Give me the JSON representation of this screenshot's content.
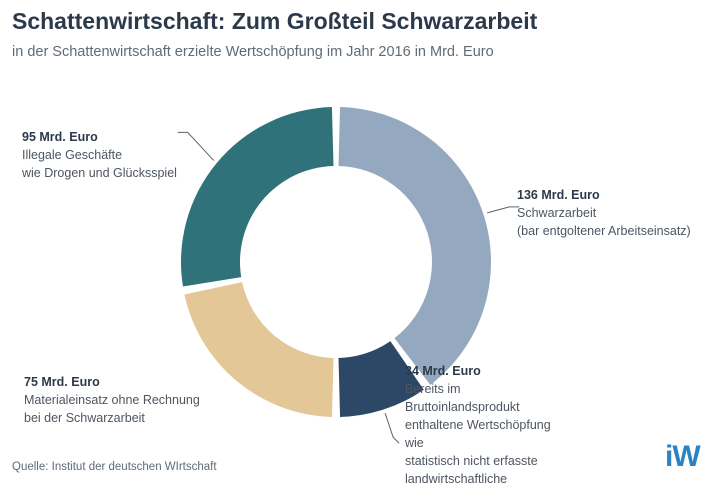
{
  "header": {
    "title": "Schattenwirtschaft: Zum Großteil Schwarzarbeit",
    "subtitle": "in der Schattenwirtschaft erzielte Wertschöpfung im Jahr 2016 in Mrd. Euro"
  },
  "chart_data": {
    "type": "pie",
    "variant": "donut",
    "unit": "Mrd. Euro",
    "slices": [
      {
        "value": 136,
        "value_label": "136 Mrd. Euro",
        "label": "Schwarzarbeit\n(bar entgoltener Arbeitseinsatz)",
        "color": "#94a9bf"
      },
      {
        "value": 34,
        "value_label": "34 Mrd. Euro",
        "label": "Bereits im\nBruttoinlandsprodukt\nenthaltene Wertschöpfung\nwie\nstatistisch nicht erfasste\nlandwirtschaftliche",
        "color": "#2c4866"
      },
      {
        "value": 75,
        "value_label": "75 Mrd. Euro",
        "label": "Materialeinsatz ohne Rechnung\nbei der Schwarzarbeit",
        "color": "#e3c797"
      },
      {
        "value": 95,
        "value_label": "95 Mrd. Euro",
        "label": "Illegale Geschäfte\nwie Drogen und Glücksspiel",
        "color": "#2f727a"
      }
    ]
  },
  "footer": {
    "source": "Quelle: Institut der deutschen WIrtschaft",
    "logo_text": "iW"
  }
}
